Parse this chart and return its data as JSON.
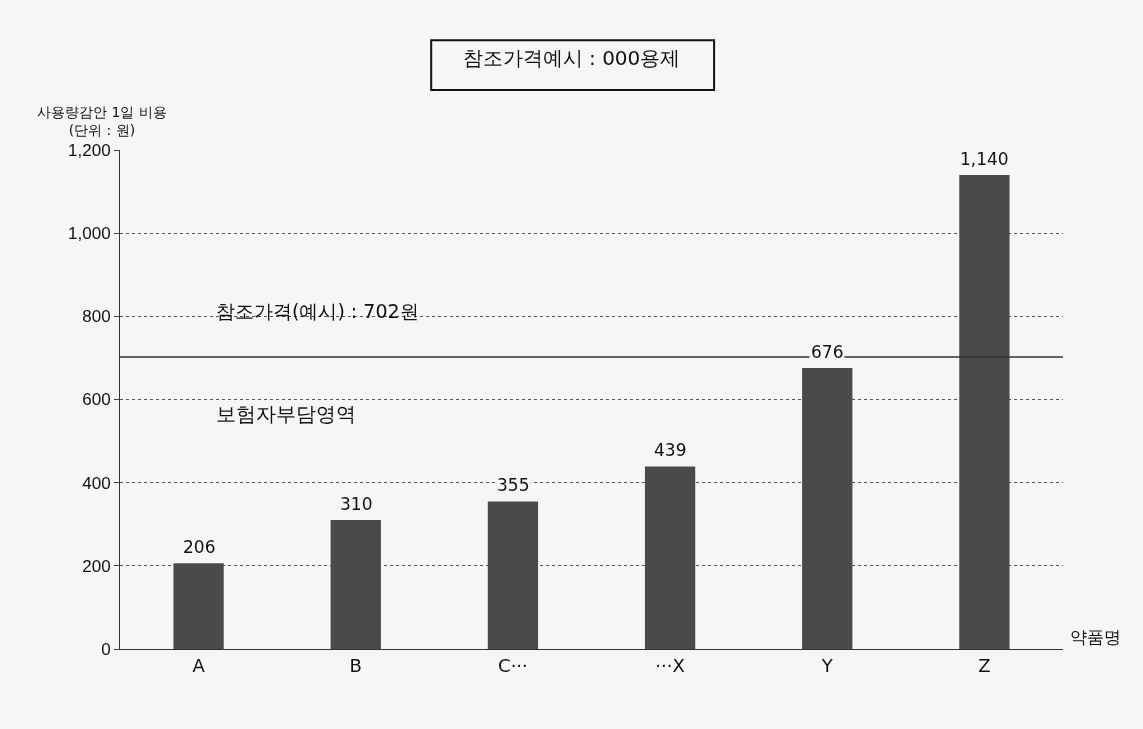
{
  "chart_data": {
    "type": "bar",
    "title": "참조가격예시 : 000용제",
    "ylabel": "사용량감안 1일 비용\n(단위 : 원)",
    "xlabel": "약품명",
    "categories": [
      "A",
      "B",
      "C···",
      "···X",
      "Y",
      "Z"
    ],
    "values": [
      206,
      310,
      355,
      439,
      676,
      1140
    ],
    "color": "#4a4a4a",
    "value_labels": [
      "206",
      "310",
      "355",
      "439",
      "676",
      "1,140"
    ],
    "ylim": [
      0,
      1200
    ],
    "yticks": [
      0,
      200,
      400,
      600,
      800,
      {
        "value": 1000,
        "label": "1,000"
      },
      {
        "value": 1200,
        "label": "1,200"
      }
    ],
    "grid": "y",
    "ref_lines": [
      {
        "axis": "y",
        "value": 702,
        "label": "참조가격(예시) : 702원",
        "color": "#333333",
        "line_style": "solid"
      }
    ],
    "annotations": [
      "보험자부담영역"
    ]
  }
}
